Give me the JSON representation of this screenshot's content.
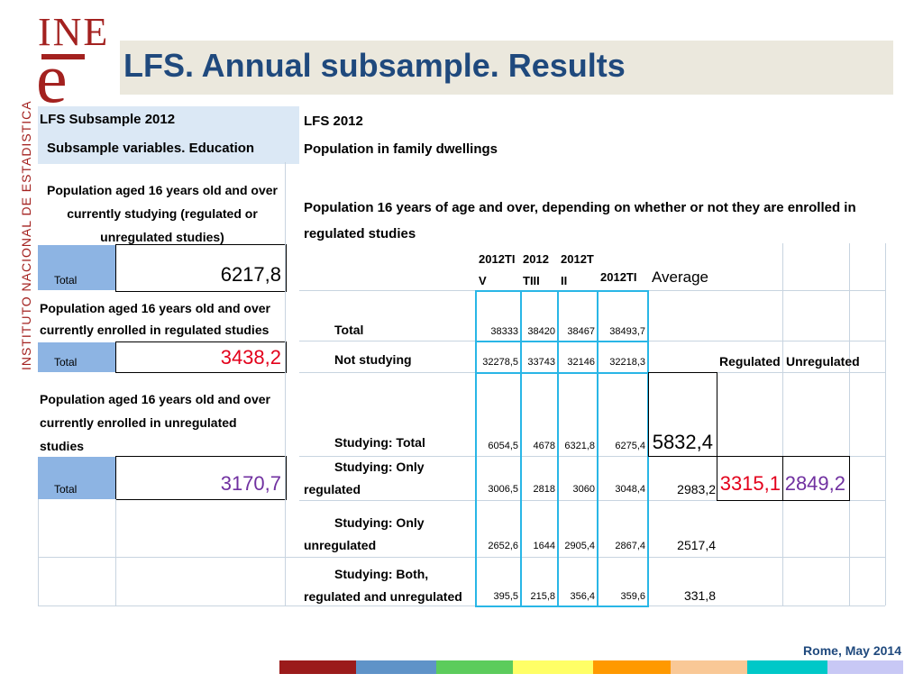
{
  "logo": {
    "ine": "INE",
    "e": "e",
    "side_text": "INSTITUTO NACIONAL DE ESTADISTICA"
  },
  "title": "LFS.  Annual subsample. Results",
  "left_panel": {
    "header1": "LFS Subsample 2012",
    "header2": "Subsample variables. Education",
    "block1_label": "Population aged 16 years old and over currently studying (regulated or unregulated studies)",
    "block1_total_label": "Total",
    "block1_value": "6217,8",
    "block2_label": "Population aged 16 years old and over currently enrolled in regulated studies",
    "block2_total_label": "Total",
    "block2_value": "3438,2",
    "block3_label": "Population aged 16 years old and over currently enrolled in unregulated studies",
    "block3_total_label": "Total",
    "block3_value": "3170,7"
  },
  "right_panel": {
    "header1": "LFS 2012",
    "header2": "Population in family dwellings",
    "subtitle": "Population 16 years of age and over, depending on whether or not they are enrolled in regulated studies",
    "col_headers": [
      "2012TIV",
      "2012TIII",
      "2012TII",
      "2012TI"
    ],
    "average_label": "Average",
    "regulated_label": "Regulated",
    "unregulated_label": "Unregulated",
    "rows": [
      {
        "label": "Total",
        "values": [
          "38333",
          "38420",
          "38467",
          "38493,7"
        ],
        "average": ""
      },
      {
        "label": "Not studying",
        "values": [
          "32278,5",
          "33743",
          "32146",
          "32218,3"
        ],
        "average": ""
      },
      {
        "label": "Studying: Total",
        "values": [
          "6054,5",
          "4678",
          "6321,8",
          "6275,4"
        ],
        "average": "5832,4"
      },
      {
        "label": "Studying: Only regulated",
        "values": [
          "3006,5",
          "2818",
          "3060",
          "3048,4"
        ],
        "average": "2983,2"
      },
      {
        "label": "Studying: Only unregulated",
        "values": [
          "2652,6",
          "1644",
          "2905,4",
          "2867,4"
        ],
        "average": "2517,4"
      },
      {
        "label": "Studying: Both, regulated and unregulated",
        "values": [
          "395,5",
          "215,8",
          "356,4",
          "359,6"
        ],
        "average": "331,8"
      }
    ],
    "regulated_value": "3315,1",
    "unregulated_value": "2849,2"
  },
  "colors": {
    "red": "#e3001b",
    "purple": "#7030a0",
    "title_blue": "#1f497d",
    "ine_red": "#a3211f",
    "cyan": "#29b6e6"
  },
  "footer": "Rome, May 2014",
  "stripes": [
    "#9b1b1b",
    "#5f93c8",
    "#5ccc5c",
    "#ffff66",
    "#ff9900",
    "#f9c896",
    "#00c8c8",
    "#c8c8f5"
  ]
}
